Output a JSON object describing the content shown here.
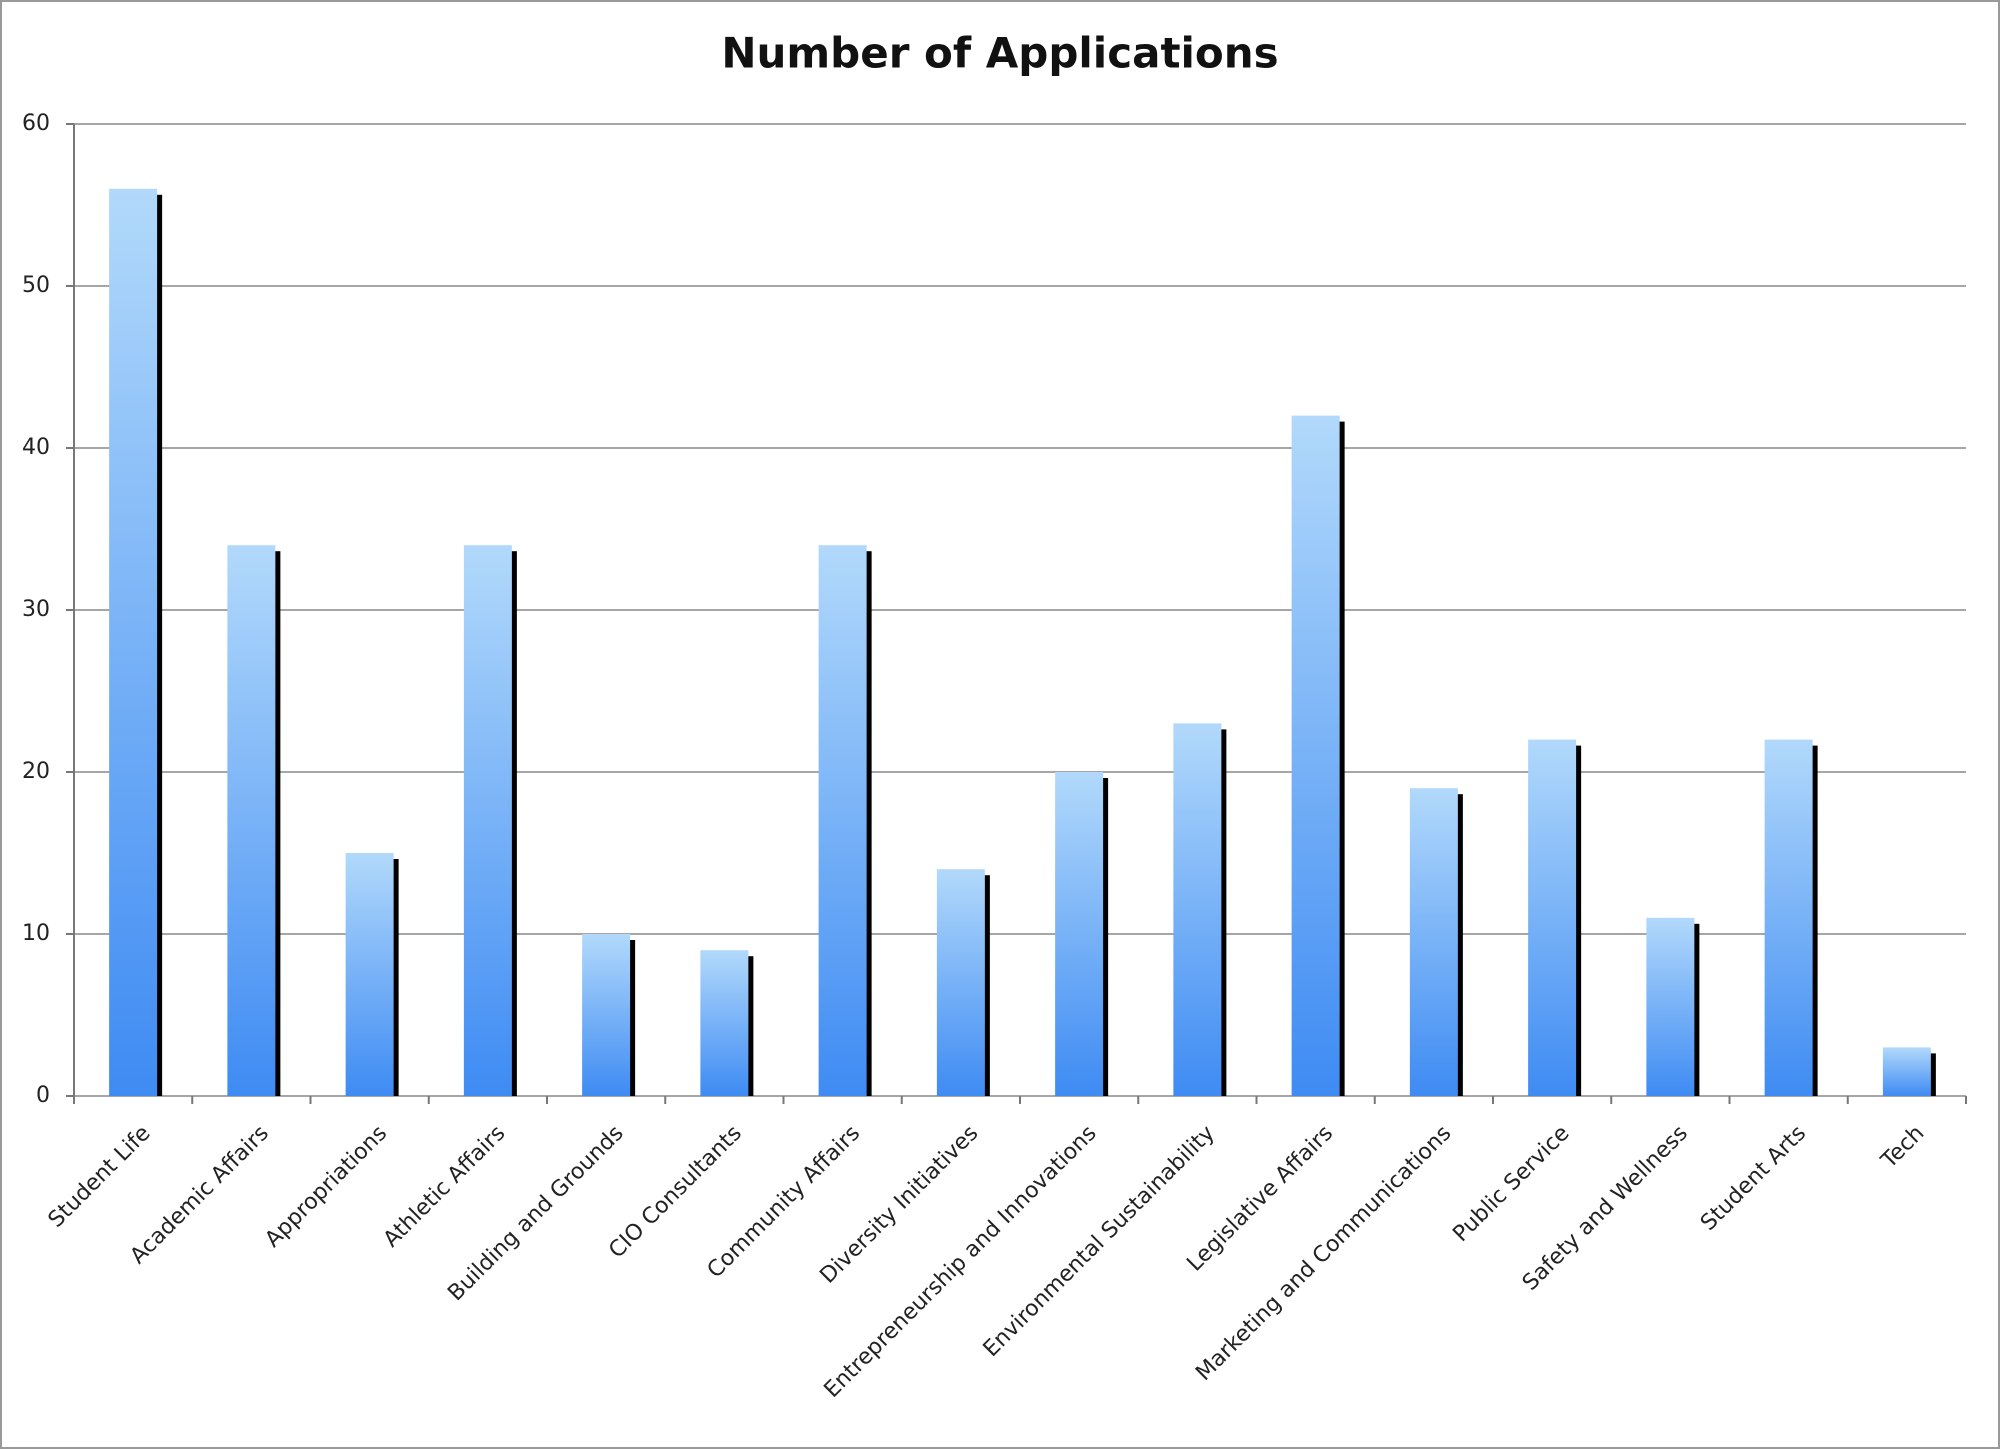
{
  "chart_data": {
    "type": "bar",
    "title": "Number of Applications",
    "categories": [
      "Student Life",
      "Academic Affairs",
      "Appropriations",
      "Athletic Affairs",
      "Building and Grounds",
      "CIO Consultants",
      "Community Affairs",
      "Diversity Initiatives",
      "Entrepreneurship and Innovations",
      "Environmental Sustainability",
      "Legislative Affairs",
      "Marketing and Communications",
      "Public Service",
      "Safety and Wellness",
      "Student Arts",
      "Tech"
    ],
    "values": [
      56,
      34,
      15,
      34,
      10,
      9,
      34,
      14,
      20,
      23,
      42,
      19,
      22,
      11,
      22,
      3
    ],
    "gradient": [
      "#b2d9fb",
      "#3e8bf3"
    ],
    "ylim": [
      0,
      60
    ],
    "yticks": [
      0,
      10,
      20,
      30,
      40,
      50,
      60
    ],
    "grid": true
  }
}
